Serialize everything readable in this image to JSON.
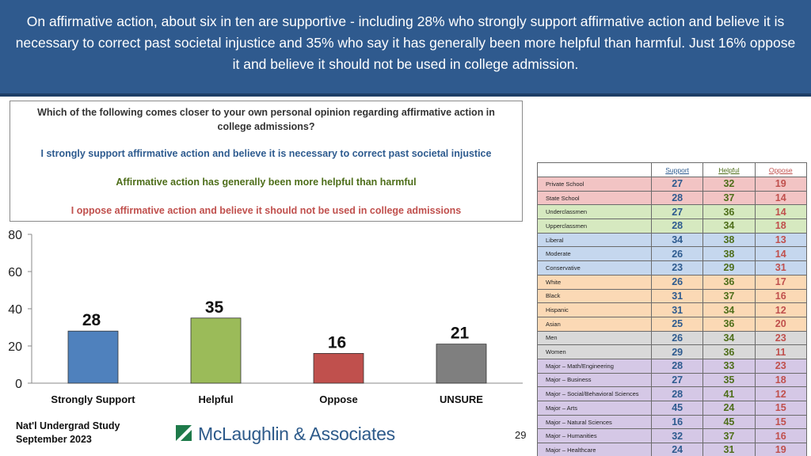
{
  "header": {
    "text": "On affirmative action, about six in ten are supportive - including 28% who strongly support affirmative action and believe it is necessary to correct past societal injustice and 35% who say it has generally been more helpful than harmful. Just 16% oppose it and believe it should not be used in college admission."
  },
  "question": {
    "text": "Which of the following comes closer to your own personal opinion regarding affirmative action in college admissions?",
    "option1": "I strongly support affirmative action and believe it is necessary to correct past societal injustice",
    "option2": "Affirmative action has generally been more helpful than harmful",
    "option3": "I oppose affirmative action and believe it should not be used in college admissions"
  },
  "chart_data": {
    "type": "bar",
    "categories": [
      "Strongly Support",
      "Helpful",
      "Oppose",
      "UNSURE"
    ],
    "values": [
      28,
      35,
      16,
      21
    ],
    "colors": [
      "#4f81bd",
      "#9bbb59",
      "#c0504d",
      "#7f7f7f"
    ],
    "ylim": [
      0,
      80
    ],
    "yticks": [
      0,
      20,
      40,
      60,
      80
    ],
    "title": "",
    "xlabel": "",
    "ylabel": "",
    "grid": false,
    "legend": false
  },
  "table": {
    "headers": {
      "support": "Support",
      "helpful": "Helpful",
      "oppose": "Oppose"
    },
    "rows": [
      {
        "label": "Private School",
        "support": "27",
        "helpful": "32",
        "oppose": "19",
        "bg": "#f2c4c4"
      },
      {
        "label": "State School",
        "support": "28",
        "helpful": "37",
        "oppose": "14",
        "bg": "#f2c4c4"
      },
      {
        "label": "Underclassmen",
        "support": "27",
        "helpful": "36",
        "oppose": "14",
        "bg": "#d6e9c0"
      },
      {
        "label": "Upperclassmen",
        "support": "28",
        "helpful": "34",
        "oppose": "18",
        "bg": "#d6e9c0"
      },
      {
        "label": "Liberal",
        "support": "34",
        "helpful": "38",
        "oppose": "13",
        "bg": "#c5d7ee"
      },
      {
        "label": "Moderate",
        "support": "26",
        "helpful": "38",
        "oppose": "14",
        "bg": "#c5d7ee"
      },
      {
        "label": "Conservative",
        "support": "23",
        "helpful": "29",
        "oppose": "31",
        "bg": "#c5d7ee"
      },
      {
        "label": "White",
        "support": "26",
        "helpful": "36",
        "oppose": "17",
        "bg": "#fbd9b5"
      },
      {
        "label": "Black",
        "support": "31",
        "helpful": "37",
        "oppose": "16",
        "bg": "#fbd9b5"
      },
      {
        "label": "Hispanic",
        "support": "31",
        "helpful": "34",
        "oppose": "12",
        "bg": "#fbd9b5"
      },
      {
        "label": "Asian",
        "support": "25",
        "helpful": "36",
        "oppose": "20",
        "bg": "#fbd9b5"
      },
      {
        "label": "Men",
        "support": "26",
        "helpful": "34",
        "oppose": "23",
        "bg": "#d9d9d9"
      },
      {
        "label": "Women",
        "support": "29",
        "helpful": "36",
        "oppose": "11",
        "bg": "#d9d9d9"
      },
      {
        "label": "Major – Math/Engineering",
        "support": "28",
        "helpful": "33",
        "oppose": "23",
        "bg": "#d5c8e6"
      },
      {
        "label": "Major – Business",
        "support": "27",
        "helpful": "35",
        "oppose": "18",
        "bg": "#d5c8e6"
      },
      {
        "label": "Major – Social/Behavioral Sciences",
        "support": "28",
        "helpful": "41",
        "oppose": "12",
        "bg": "#d5c8e6"
      },
      {
        "label": "Major – Arts",
        "support": "45",
        "helpful": "24",
        "oppose": "15",
        "bg": "#d5c8e6"
      },
      {
        "label": "Major – Natural Sciences",
        "support": "16",
        "helpful": "45",
        "oppose": "15",
        "bg": "#d5c8e6"
      },
      {
        "label": "Major – Humanities",
        "support": "32",
        "helpful": "37",
        "oppose": "16",
        "bg": "#d5c8e6"
      },
      {
        "label": "Major – Healthcare",
        "support": "24",
        "helpful": "31",
        "oppose": "19",
        "bg": "#d5c8e6"
      }
    ]
  },
  "footer": {
    "study_line1": "Nat'l Undergrad Study",
    "study_line2": "September 2023",
    "logo_text": "McLaughlin & Associates",
    "logo_icon": "logo-mark-icon",
    "page_number": "29"
  }
}
